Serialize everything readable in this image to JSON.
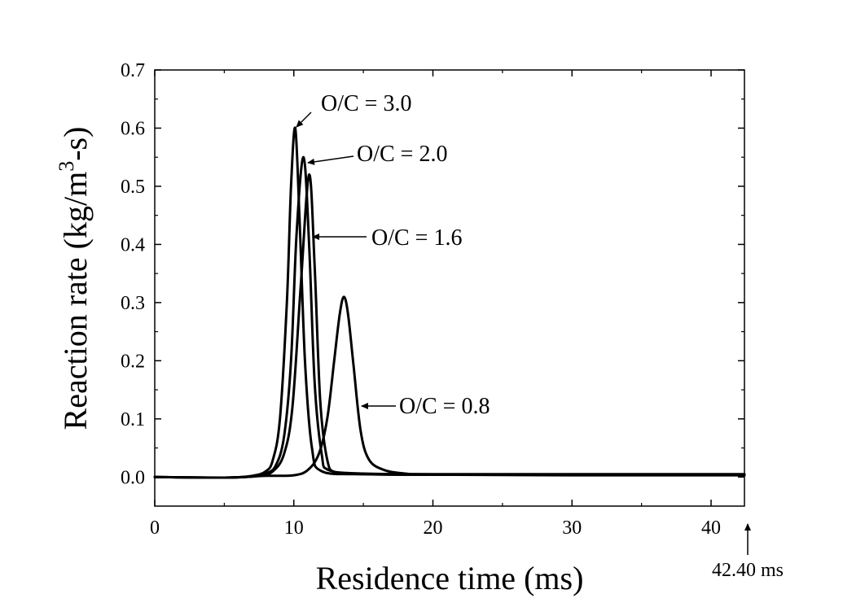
{
  "chart_data": {
    "type": "line",
    "title": "",
    "xlabel": "Residence time (ms)",
    "ylabel_main": "Reaction rate (kg/m",
    "ylabel_sup": "3",
    "ylabel_tail": "-s)",
    "xlim": [
      0,
      42.4
    ],
    "ylim": [
      -0.05,
      0.7
    ],
    "xticks": [
      0,
      10,
      20,
      30,
      40
    ],
    "xtick_labels": [
      "0",
      "10",
      "20",
      "30",
      "40"
    ],
    "yticks": [
      0.0,
      0.1,
      0.2,
      0.3,
      0.4,
      0.5,
      0.6,
      0.7
    ],
    "ytick_labels": [
      "0.0",
      "0.1",
      "0.2",
      "0.3",
      "0.4",
      "0.5",
      "0.6",
      "0.7"
    ],
    "grid": false,
    "legend": "none",
    "line_color": "#000000",
    "series": [
      {
        "label": "O/C = 3.0",
        "points": [
          [
            0,
            0
          ],
          [
            5,
            -0.001
          ],
          [
            7,
            0.002
          ],
          [
            8,
            0.01
          ],
          [
            8.5,
            0.03
          ],
          [
            9,
            0.1
          ],
          [
            9.5,
            0.3
          ],
          [
            9.8,
            0.5
          ],
          [
            10.1,
            0.6
          ],
          [
            10.4,
            0.45
          ],
          [
            10.8,
            0.2
          ],
          [
            11.3,
            0.05
          ],
          [
            12,
            0.01
          ],
          [
            15,
            0.005
          ],
          [
            20,
            0.004
          ],
          [
            30,
            0.004
          ],
          [
            42.4,
            0.004
          ]
        ]
      },
      {
        "label": "O/C = 2.0",
        "points": [
          [
            0,
            0
          ],
          [
            5,
            -0.001
          ],
          [
            7,
            0.001
          ],
          [
            8,
            0.006
          ],
          [
            8.7,
            0.02
          ],
          [
            9.3,
            0.07
          ],
          [
            9.8,
            0.2
          ],
          [
            10.2,
            0.42
          ],
          [
            10.7,
            0.55
          ],
          [
            11.1,
            0.4
          ],
          [
            11.5,
            0.16
          ],
          [
            12,
            0.04
          ],
          [
            12.5,
            0.012
          ],
          [
            15,
            0.006
          ],
          [
            20,
            0.005
          ],
          [
            30,
            0.005
          ],
          [
            42.4,
            0.005
          ]
        ]
      },
      {
        "label": "O/C = 1.6",
        "points": [
          [
            0,
            0
          ],
          [
            5,
            -0.001
          ],
          [
            7.5,
            0.002
          ],
          [
            8.5,
            0.01
          ],
          [
            9.3,
            0.04
          ],
          [
            9.9,
            0.12
          ],
          [
            10.5,
            0.33
          ],
          [
            11.1,
            0.52
          ],
          [
            11.5,
            0.36
          ],
          [
            11.9,
            0.13
          ],
          [
            12.4,
            0.03
          ],
          [
            13,
            0.008
          ],
          [
            15,
            0.005
          ],
          [
            20,
            0.004
          ],
          [
            30,
            0.004
          ],
          [
            42.4,
            0.004
          ]
        ]
      },
      {
        "label": "O/C = 0.8",
        "points": [
          [
            0,
            0
          ],
          [
            5,
            -0.001
          ],
          [
            8,
            0.002
          ],
          [
            10,
            0.003
          ],
          [
            11,
            0.012
          ],
          [
            11.8,
            0.04
          ],
          [
            12.4,
            0.1
          ],
          [
            12.9,
            0.2
          ],
          [
            13.3,
            0.28
          ],
          [
            13.6,
            0.31
          ],
          [
            13.9,
            0.28
          ],
          [
            14.3,
            0.19
          ],
          [
            14.8,
            0.08
          ],
          [
            15.4,
            0.03
          ],
          [
            16.5,
            0.012
          ],
          [
            18,
            0.006
          ],
          [
            20,
            0.004
          ],
          [
            30,
            0.003
          ],
          [
            42.4,
            0.003
          ]
        ]
      }
    ],
    "annotations": [
      {
        "text": "O/C = 3.0",
        "series": 0,
        "tip": [
          10.1,
          0.6
        ]
      },
      {
        "text": "O/C = 2.0",
        "series": 1,
        "tip": [
          10.8,
          0.545
        ]
      },
      {
        "text": "O/C = 1.6",
        "series": 2,
        "tip": [
          11.3,
          0.415
        ]
      },
      {
        "text": "O/C = 0.8",
        "series": 3,
        "tip": [
          14.5,
          0.12
        ]
      }
    ],
    "end_marker": {
      "label": "42.40 ms",
      "x": 42.4
    }
  }
}
